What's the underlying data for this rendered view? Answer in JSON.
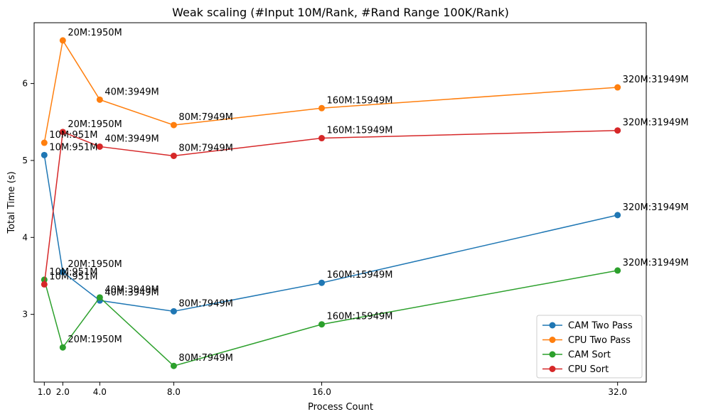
{
  "chart_data": {
    "type": "line",
    "title": "Weak scaling (#Input 10M/Rank, #Rand Range 100K/Rank)",
    "xlabel": "Process Count",
    "ylabel": "Total Time (s)",
    "x": [
      1,
      2,
      4,
      8,
      16,
      32
    ],
    "x_tick_labels": [
      "1.0",
      "2.0",
      "4.0",
      "8.0",
      "16.0",
      "32.0"
    ],
    "y_ticks": [
      3,
      4,
      5,
      6
    ],
    "xlim": [
      0.45,
      33.55
    ],
    "ylim": [
      2.12,
      6.79
    ],
    "grid": false,
    "legend_position": "lower-right",
    "point_labels": [
      "10M:951M",
      "20M:1950M",
      "40M:3949M",
      "80M:7949M",
      "160M:15949M",
      "320M:31949M"
    ],
    "series": [
      {
        "name": "CAM Two Pass",
        "color": "#1f77b4",
        "values": [
          5.07,
          3.55,
          3.18,
          3.04,
          3.41,
          4.29
        ]
      },
      {
        "name": "CPU Two Pass",
        "color": "#ff7f0e",
        "values": [
          5.23,
          6.56,
          5.79,
          5.46,
          5.68,
          5.95
        ]
      },
      {
        "name": "CAM Sort",
        "color": "#2ca02c",
        "values": [
          3.45,
          2.57,
          3.22,
          2.33,
          2.87,
          3.57
        ]
      },
      {
        "name": "CPU Sort",
        "color": "#d62728",
        "values": [
          3.39,
          5.37,
          5.18,
          5.06,
          5.29,
          5.39
        ]
      }
    ]
  }
}
